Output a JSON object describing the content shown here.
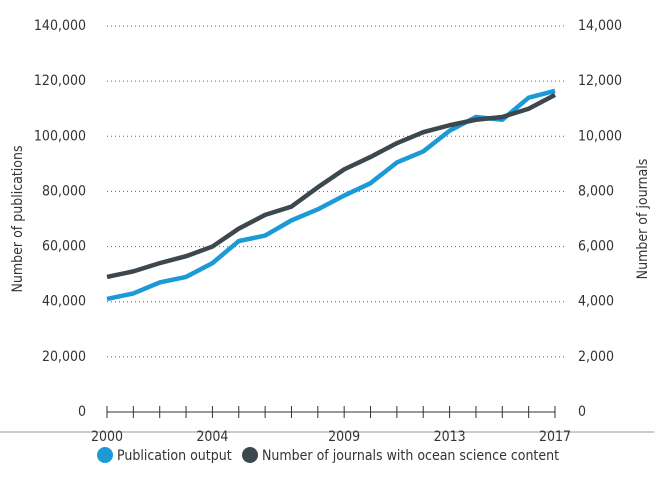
{
  "chart_data": {
    "type": "line",
    "y_label": "Number of publications",
    "y2_label": "Number of journals",
    "x": [
      2000,
      2001,
      2002,
      2003,
      2004,
      2005,
      2006,
      2007,
      2008,
      2009,
      2010,
      2011,
      2012,
      2013,
      2014,
      2015,
      2016,
      2017
    ],
    "xlim": [
      2000,
      2017
    ],
    "xticks": [
      2000,
      2004,
      2009,
      2013,
      2017
    ],
    "series": [
      {
        "name": "Publication output",
        "color": "#1b9ad6",
        "values": [
          41000,
          43000,
          47000,
          49000,
          54000,
          62000,
          64000,
          69500,
          73500,
          78500,
          83000,
          90500,
          94500,
          102000,
          107000,
          106000,
          114000,
          116500
        ]
      },
      {
        "name": "Number of journals with ocean science content",
        "color": "#3c484e",
        "axis": "y2",
        "values": [
          4900,
          5100,
          5400,
          5650,
          6000,
          6650,
          7150,
          7450,
          8150,
          8800,
          9250,
          9750,
          10150,
          10400,
          10600,
          10700,
          11000,
          11500
        ]
      }
    ],
    "ylim": [
      0,
      140000
    ],
    "yticks": [
      0,
      {
        "value": 20000,
        "label": "20,000"
      },
      {
        "value": 40000,
        "label": "40,000"
      },
      {
        "value": 60000,
        "label": "60,000"
      },
      {
        "value": 80000,
        "label": "80,000"
      },
      {
        "value": 100000,
        "label": "100,000"
      },
      {
        "value": 120000,
        "label": "120,000"
      },
      {
        "value": 140000,
        "label": "140,000"
      }
    ],
    "y2lim": [
      0,
      14000
    ],
    "y2ticks": [
      0,
      {
        "value": 2000,
        "label": "2,000"
      },
      {
        "value": 4000,
        "label": "4,000"
      },
      {
        "value": 6000,
        "label": "6,000"
      },
      {
        "value": 8000,
        "label": "8,000"
      },
      {
        "value": 10000,
        "label": "10,000"
      },
      {
        "value": 12000,
        "label": "12,000"
      },
      {
        "value": 14000,
        "label": "14,000"
      }
    ],
    "grid": true,
    "legend": "bottom"
  }
}
